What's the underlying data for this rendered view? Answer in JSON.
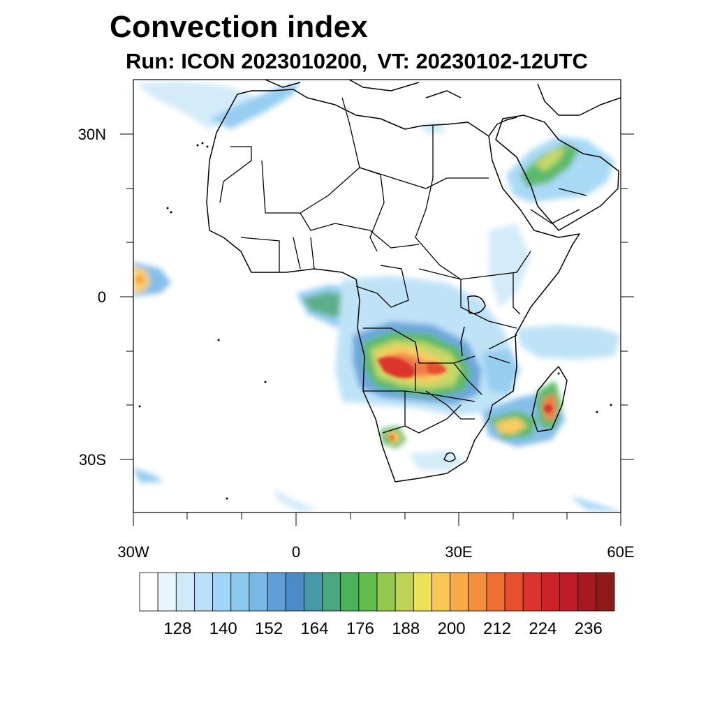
{
  "title": "Convection index",
  "subtitle": {
    "run": "Run: ICON 2023010200,",
    "vt": "VT: 20230102-12UTC"
  },
  "axes": {
    "lat_labels": [
      "30N",
      "0",
      "30S"
    ],
    "lon_labels": [
      "30W",
      "0",
      "30E",
      "60E"
    ]
  },
  "colorbar": {
    "colors": [
      "#ffffff",
      "#e9f5fc",
      "#cfeaf8",
      "#b8e0f6",
      "#9fd6f5",
      "#8cc9ef",
      "#78b8e6",
      "#5f9fd8",
      "#4a8cc9",
      "#4599a6",
      "#48a77e",
      "#4bb35a",
      "#62bd4c",
      "#95c84f",
      "#bfd456",
      "#ede156",
      "#f9c852",
      "#f8ab45",
      "#f48f3b",
      "#ef6f34",
      "#e6502f",
      "#dc342c",
      "#ce2229",
      "#bc1c25",
      "#a61920",
      "#8e1a1a"
    ],
    "tick_labels": [
      "128",
      "140",
      "152",
      "164",
      "176",
      "188",
      "200",
      "212",
      "224",
      "236"
    ]
  }
}
